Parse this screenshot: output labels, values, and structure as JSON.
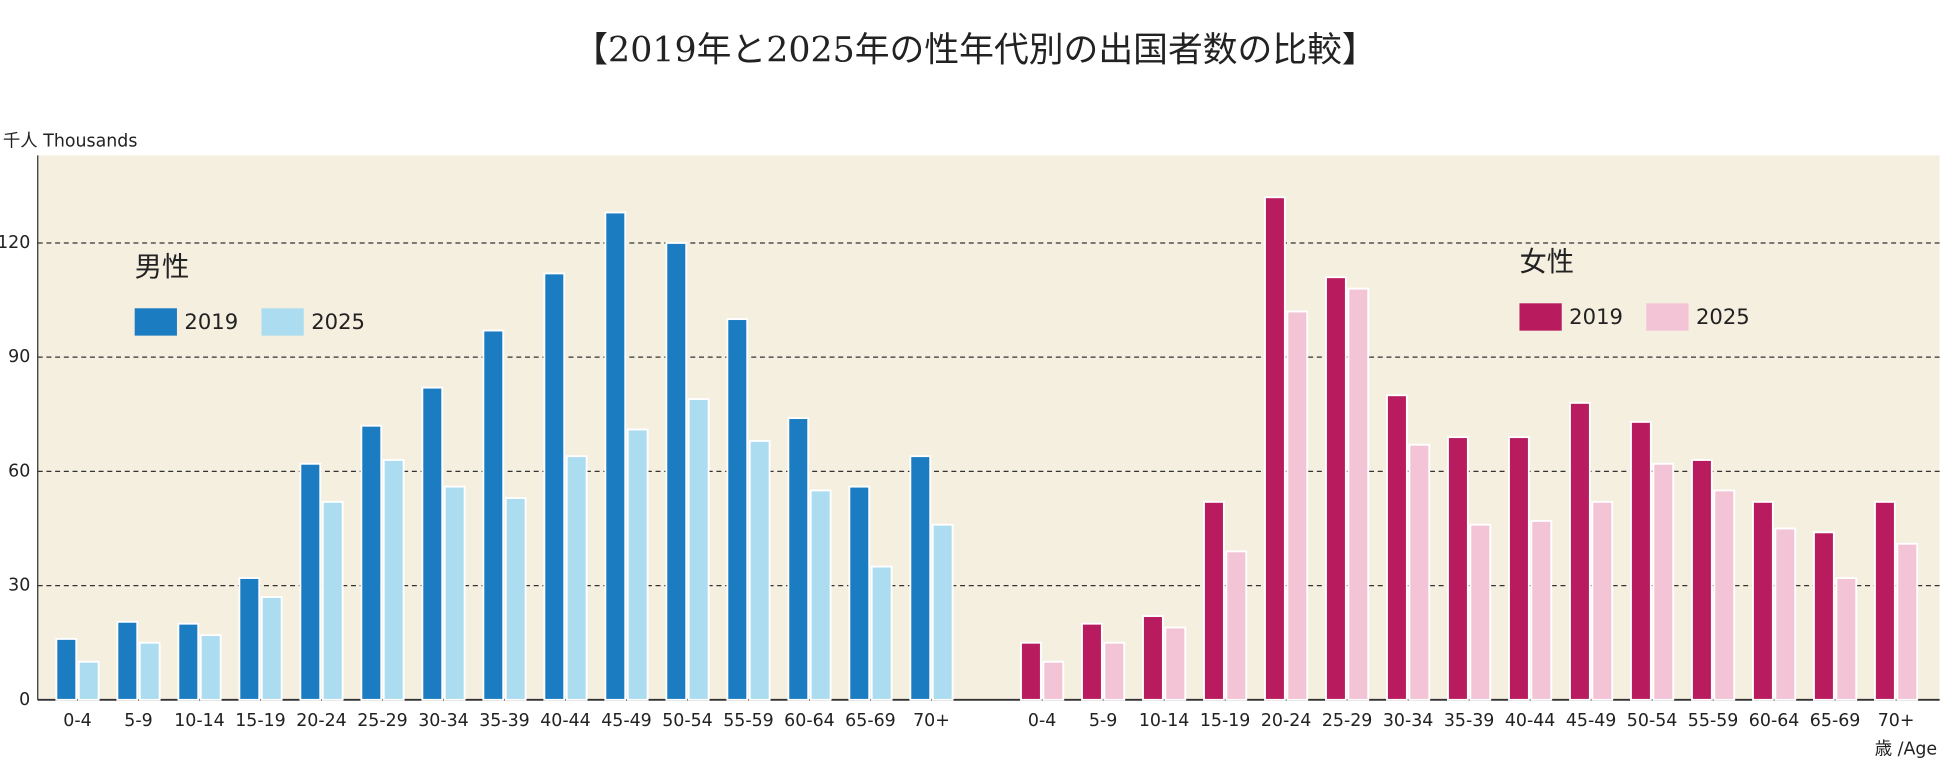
{
  "chart_data": {
    "type": "bar",
    "title": "【2019年と2025年の性年代別の出国者数の比較】",
    "y_label": "千人 Thousands",
    "x_label": "歳 /Age",
    "categories": [
      "0-4",
      "5-9",
      "10-14",
      "15-19",
      "20-24",
      "25-29",
      "30-34",
      "35-39",
      "40-44",
      "45-49",
      "50-54",
      "55-59",
      "60-64",
      "65-69",
      "70+"
    ],
    "ylim": [
      0,
      143
    ],
    "yticks": [
      0,
      30,
      60,
      90,
      120
    ],
    "grid": true,
    "groups": [
      {
        "label": "男性",
        "series": [
          {
            "name": "2019",
            "color": "#1b7cc2",
            "values": [
              16,
              20.5,
              20,
              32,
              62,
              72,
              82,
              97,
              112,
              128,
              120,
              100,
              74,
              56,
              64
            ]
          },
          {
            "name": "2025",
            "color": "#acdcf0",
            "values": [
              10,
              15,
              17,
              27,
              52,
              63,
              56,
              53,
              64,
              71,
              79,
              68,
              55,
              35,
              46
            ]
          }
        ]
      },
      {
        "label": "女性",
        "series": [
          {
            "name": "2019",
            "color": "#b81c5e",
            "values": [
              15,
              20,
              22,
              52,
              132,
              111,
              80,
              69,
              69,
              78,
              73,
              63,
              52,
              44,
              52
            ]
          },
          {
            "name": "2025",
            "color": "#f3c3d6",
            "values": [
              10,
              15,
              19,
              39,
              102,
              108,
              67,
              46,
              47,
              52,
              62,
              55,
              45,
              32,
              41
            ]
          }
        ]
      }
    ]
  }
}
